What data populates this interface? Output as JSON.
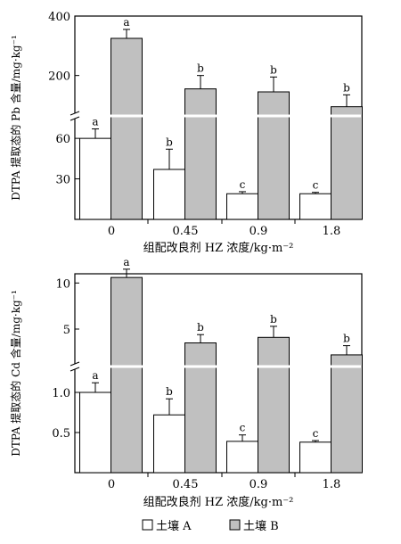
{
  "chart_data": [
    {
      "type": "bar",
      "ylabel": "DTPA 提取态的 Pb 含量/mg·kg⁻¹",
      "xlabel": "组配改良剂 HZ 浓度/kg·m⁻²",
      "categories": [
        "0",
        "0.45",
        "0.9",
        "1.8"
      ],
      "broken_axis": true,
      "lower_ylim": [
        0,
        70
      ],
      "upper_ylim": [
        100,
        400
      ],
      "yticks_lower": [
        "30",
        "60"
      ],
      "yticks_upper": [
        "200",
        "400"
      ],
      "series": [
        {
          "name": "土壤 A",
          "color": "#ffffff",
          "values": [
            60,
            37,
            19,
            19
          ],
          "errors": [
            7,
            15,
            1.5,
            1
          ],
          "letters": [
            "a",
            "b",
            "c",
            "c"
          ]
        },
        {
          "name": "土壤 B",
          "color": "#c0c0c0",
          "values": [
            325,
            155,
            145,
            95
          ],
          "errors": [
            30,
            45,
            50,
            40
          ],
          "letters": [
            "a",
            "b",
            "b",
            "b"
          ]
        }
      ]
    },
    {
      "type": "bar",
      "ylabel": "DTPA 提取态的 Cd 含量/mg·kg⁻¹",
      "xlabel": "组配改良剂 HZ 浓度/kg·m⁻²",
      "categories": [
        "0",
        "0.45",
        "0.9",
        "1.8"
      ],
      "broken_axis": true,
      "lower_ylim": [
        0,
        1.2
      ],
      "upper_ylim": [
        2,
        11
      ],
      "yticks_lower": [
        "0.5",
        "1.0"
      ],
      "yticks_upper": [
        "5",
        "10"
      ],
      "series": [
        {
          "name": "土壤 A",
          "color": "#ffffff",
          "values": [
            1.0,
            0.72,
            0.39,
            0.38
          ],
          "errors": [
            0.12,
            0.2,
            0.08,
            0.02
          ],
          "letters": [
            "a",
            "b",
            "c",
            "c"
          ]
        },
        {
          "name": "土壤 B",
          "color": "#c0c0c0",
          "values": [
            10.6,
            3.5,
            4.1,
            2.2
          ],
          "errors": [
            0.9,
            0.9,
            1.2,
            1.0
          ],
          "letters": [
            "a",
            "b",
            "b",
            "b"
          ]
        }
      ]
    }
  ],
  "legend": [
    {
      "label": "土壤 A",
      "color": "#ffffff"
    },
    {
      "label": "土壤 B",
      "color": "#c0c0c0"
    }
  ]
}
